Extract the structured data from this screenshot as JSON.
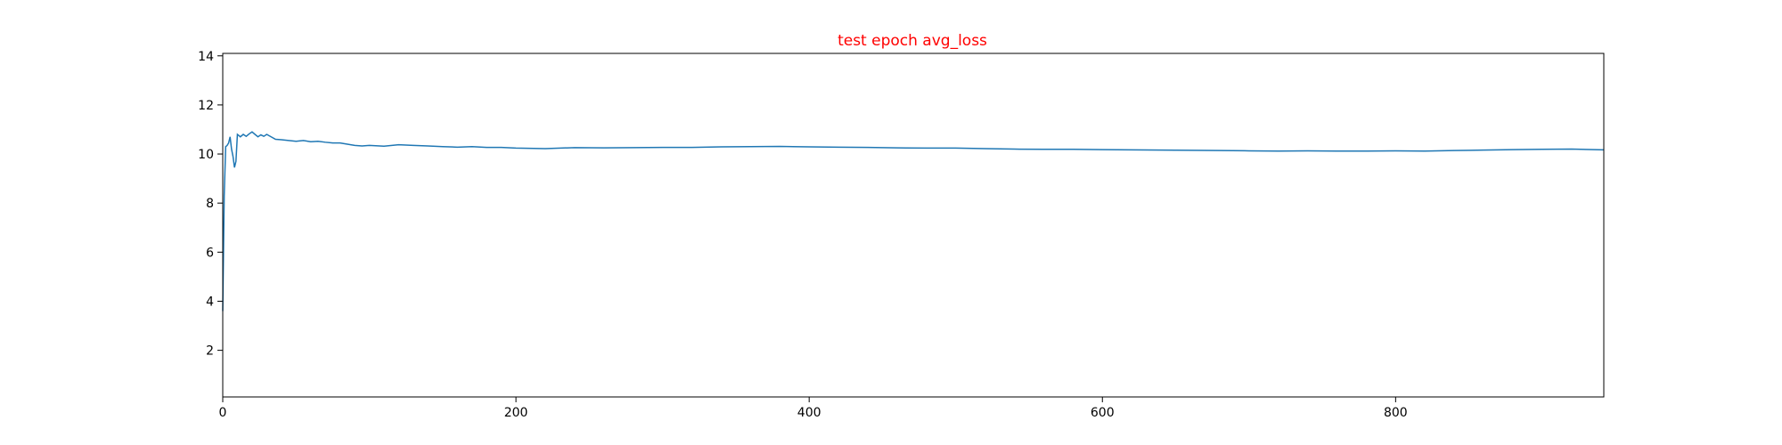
{
  "chart_data": {
    "type": "line",
    "title": "test epoch avg_loss",
    "title_color": "#ff0000",
    "xlabel": "",
    "ylabel": "",
    "xlim": [
      0,
      942
    ],
    "ylim": [
      0.1,
      14.1
    ],
    "xticks": [
      0,
      200,
      400,
      600,
      800
    ],
    "yticks": [
      2,
      4,
      6,
      8,
      10,
      12,
      14
    ],
    "grid": false,
    "line_color": "#1f77b4",
    "series": [
      {
        "x": [
          0,
          1,
          2,
          3,
          4,
          5,
          6,
          7,
          8,
          9,
          10,
          11,
          12,
          14,
          16,
          18,
          20,
          22,
          24,
          26,
          28,
          30,
          33,
          36,
          40,
          45,
          50,
          55,
          60,
          65,
          70,
          75,
          80,
          85,
          90,
          95,
          100,
          110,
          120,
          130,
          140,
          150,
          160,
          170,
          180,
          190,
          200,
          220,
          240,
          260,
          280,
          300,
          320,
          340,
          360,
          380,
          400,
          420,
          440,
          460,
          480,
          500,
          520,
          540,
          560,
          580,
          600,
          620,
          640,
          660,
          680,
          700,
          720,
          740,
          760,
          780,
          800,
          820,
          840,
          860,
          880,
          900,
          920,
          942
        ],
        "y": [
          3.6,
          8.3,
          10.3,
          10.35,
          10.45,
          10.7,
          10.2,
          9.9,
          9.45,
          9.7,
          10.8,
          10.75,
          10.7,
          10.8,
          10.72,
          10.82,
          10.9,
          10.8,
          10.7,
          10.78,
          10.72,
          10.8,
          10.7,
          10.6,
          10.58,
          10.55,
          10.52,
          10.55,
          10.5,
          10.52,
          10.48,
          10.45,
          10.45,
          10.4,
          10.35,
          10.33,
          10.35,
          10.32,
          10.38,
          10.35,
          10.33,
          10.3,
          10.28,
          10.3,
          10.27,
          10.27,
          10.24,
          10.22,
          10.26,
          10.25,
          10.26,
          10.27,
          10.27,
          10.29,
          10.3,
          10.31,
          10.29,
          10.28,
          10.27,
          10.25,
          10.24,
          10.24,
          10.22,
          10.2,
          10.19,
          10.19,
          10.18,
          10.17,
          10.16,
          10.15,
          10.14,
          10.13,
          10.12,
          10.13,
          10.12,
          10.12,
          10.13,
          10.12,
          10.14,
          10.16,
          10.18,
          10.19,
          10.2,
          10.17
        ]
      }
    ]
  }
}
